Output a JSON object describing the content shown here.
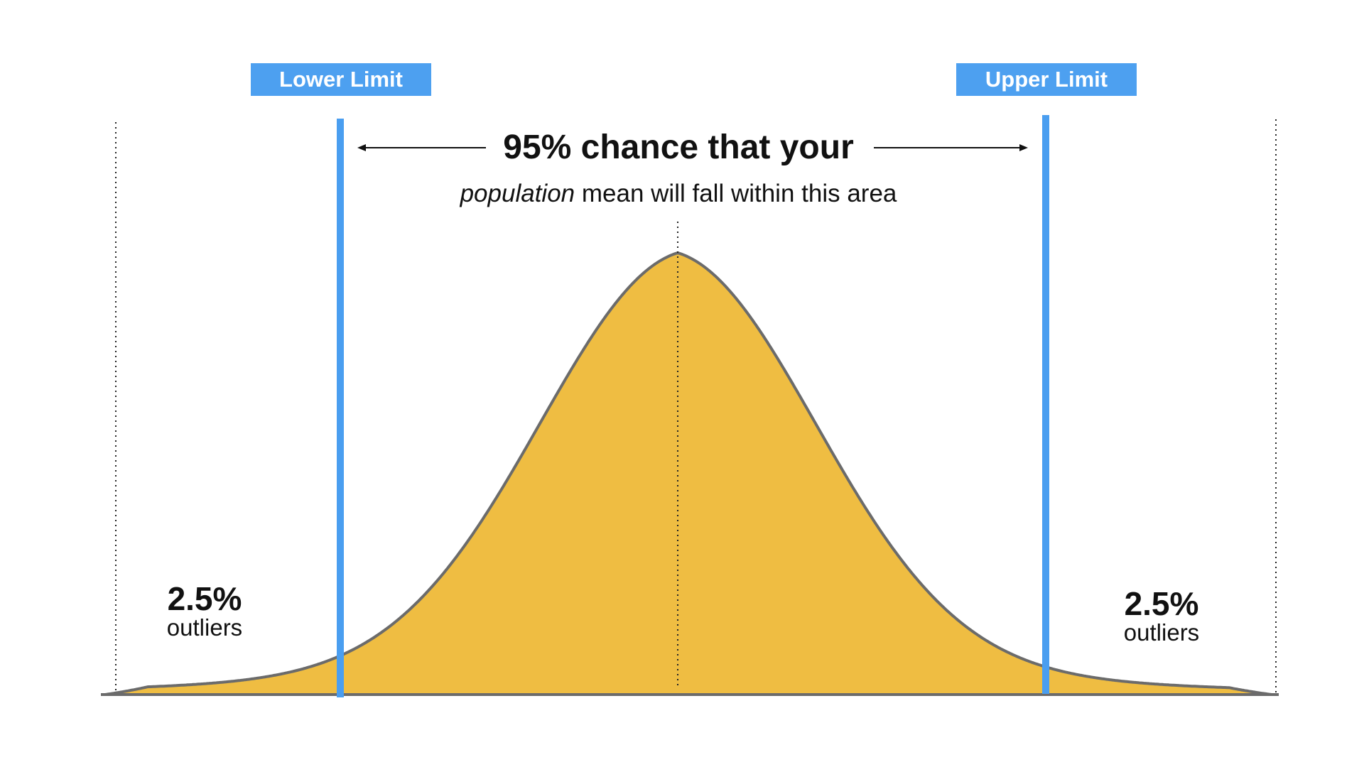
{
  "labels": {
    "lower_limit": "Lower Limit",
    "upper_limit": "Upper Limit"
  },
  "headline": "95% chance that your",
  "subline": {
    "italic": "population",
    "rest": "mean will fall within this area"
  },
  "left_tail": {
    "percent": "2.5%",
    "caption": "outliers"
  },
  "right_tail": {
    "percent": "2.5%",
    "caption": "outliers"
  },
  "colors": {
    "curve_fill": "#efbd42",
    "curve_stroke": "#6b6b6b",
    "limit_line": "#4a9ef0",
    "label_bg": "#4da0f0"
  }
}
